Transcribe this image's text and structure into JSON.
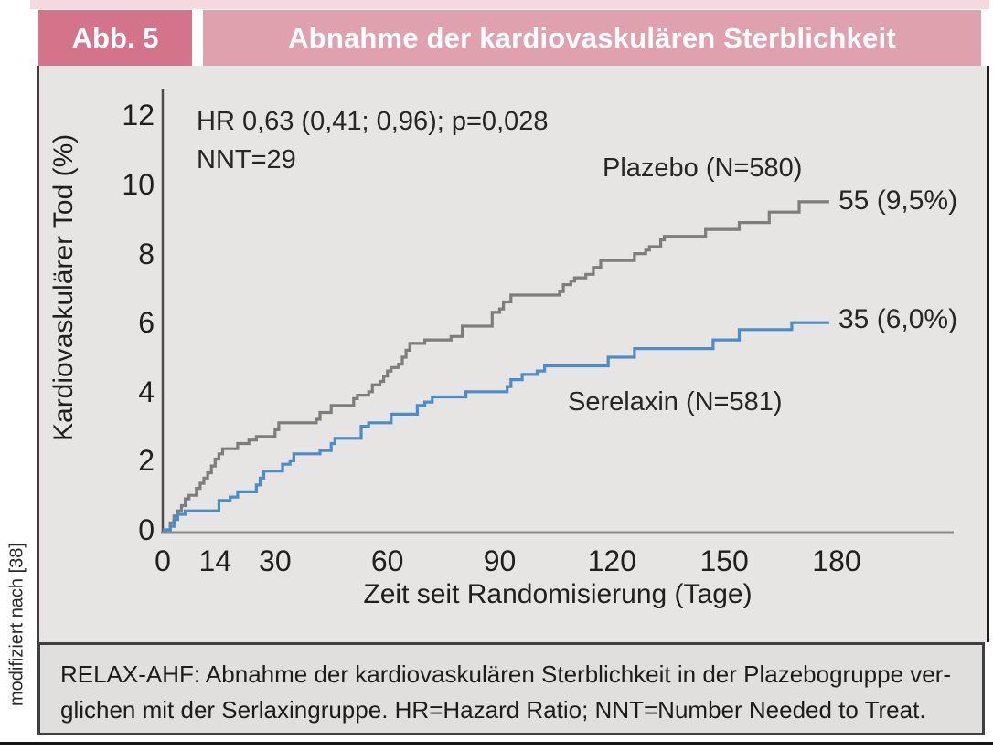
{
  "figure": {
    "label": "Abb. 5",
    "title": "Abnahme der kardiovaskulären Sterblichkeit",
    "side_note": "modifiziert nach [38]",
    "caption_line1": "RELAX-AHF: Abnahme der kardiovaskulären Sterblichkeit in der Plazebogruppe ver-",
    "caption_line2": "glichen mit der Serlaxingruppe. HR=Hazard Ratio; NNT=Number Needed to Treat."
  },
  "colors": {
    "header_label_bg": "#d3748b",
    "header_title_bg": "#dfa1ae",
    "top_strip": "#f4d9de",
    "chart_bg": "#e6e5e4",
    "footer_bg": "#e0dfde",
    "plazebo_line": "#7d7d7d",
    "serelaxin_line": "#4b8ec7"
  },
  "chart_data": {
    "type": "line",
    "subtype": "kaplan-meier-step",
    "title": "",
    "xlabel": "Zeit seit Randomisierung (Tage)",
    "ylabel": "Kardiovaskulärer Tod (%)",
    "xlim": [
      0,
      211
    ],
    "ylim": [
      0,
      13
    ],
    "x_ticks": [
      0,
      14,
      30,
      60,
      90,
      120,
      150,
      180
    ],
    "y_ticks": [
      0,
      2,
      4,
      6,
      8,
      10,
      12
    ],
    "grid": false,
    "legend_position": "inline-labels",
    "annotation": [
      "HR 0,63 (0,41; 0,96); p=0,028",
      "NNT=29"
    ],
    "series": [
      {
        "name": "Plazebo (N=580)",
        "end_label": "55 (9,5%)",
        "events": 55,
        "final_pct": 9.5,
        "color": "#7d7d7d",
        "points": [
          [
            0,
            0
          ],
          [
            2,
            0.2
          ],
          [
            3,
            0.4
          ],
          [
            4,
            0.55
          ],
          [
            5,
            0.7
          ],
          [
            6,
            0.9
          ],
          [
            7,
            1.0
          ],
          [
            9,
            1.2
          ],
          [
            10,
            1.35
          ],
          [
            11,
            1.5
          ],
          [
            12,
            1.65
          ],
          [
            13,
            1.85
          ],
          [
            14,
            2.05
          ],
          [
            15,
            2.2
          ],
          [
            16,
            2.35
          ],
          [
            20,
            2.5
          ],
          [
            23,
            2.6
          ],
          [
            25,
            2.7
          ],
          [
            30,
            2.9
          ],
          [
            31,
            3.1
          ],
          [
            41,
            3.2
          ],
          [
            42,
            3.4
          ],
          [
            45,
            3.6
          ],
          [
            51,
            3.8
          ],
          [
            52,
            3.9
          ],
          [
            55,
            4.0
          ],
          [
            56,
            4.2
          ],
          [
            58,
            4.3
          ],
          [
            59,
            4.45
          ],
          [
            60,
            4.6
          ],
          [
            61,
            4.7
          ],
          [
            63,
            4.8
          ],
          [
            64,
            5.0
          ],
          [
            65,
            5.2
          ],
          [
            66,
            5.4
          ],
          [
            70,
            5.5
          ],
          [
            77,
            5.6
          ],
          [
            80,
            5.9
          ],
          [
            88,
            6.3
          ],
          [
            90,
            6.4
          ],
          [
            91,
            6.6
          ],
          [
            93,
            6.8
          ],
          [
            106,
            6.9
          ],
          [
            107,
            7.1
          ],
          [
            109,
            7.2
          ],
          [
            110,
            7.3
          ],
          [
            113,
            7.4
          ],
          [
            115,
            7.6
          ],
          [
            117,
            7.8
          ],
          [
            126,
            8.0
          ],
          [
            129,
            8.1
          ],
          [
            130,
            8.2
          ],
          [
            133,
            8.4
          ],
          [
            134,
            8.5
          ],
          [
            145,
            8.7
          ],
          [
            154,
            8.9
          ],
          [
            162,
            9.2
          ],
          [
            170,
            9.5
          ],
          [
            178,
            9.5
          ]
        ]
      },
      {
        "name": "Serelaxin (N=581)",
        "end_label": "35 (6,0%)",
        "events": 35,
        "final_pct": 6.0,
        "color": "#4b8ec7",
        "points": [
          [
            0,
            0
          ],
          [
            2,
            0.1
          ],
          [
            3,
            0.3
          ],
          [
            4,
            0.45
          ],
          [
            6,
            0.55
          ],
          [
            15,
            0.85
          ],
          [
            18,
            0.95
          ],
          [
            20,
            1.1
          ],
          [
            25,
            1.3
          ],
          [
            26,
            1.5
          ],
          [
            27,
            1.7
          ],
          [
            32,
            1.9
          ],
          [
            34,
            2.0
          ],
          [
            35,
            2.2
          ],
          [
            42,
            2.3
          ],
          [
            45,
            2.5
          ],
          [
            46,
            2.65
          ],
          [
            53,
            3.0
          ],
          [
            55,
            3.1
          ],
          [
            61,
            3.35
          ],
          [
            68,
            3.6
          ],
          [
            70,
            3.7
          ],
          [
            72,
            3.85
          ],
          [
            81,
            4.0
          ],
          [
            92,
            4.15
          ],
          [
            93,
            4.35
          ],
          [
            96,
            4.5
          ],
          [
            100,
            4.6
          ],
          [
            102,
            4.75
          ],
          [
            119,
            5.0
          ],
          [
            126,
            5.25
          ],
          [
            147,
            5.5
          ],
          [
            154,
            5.8
          ],
          [
            168,
            6.0
          ],
          [
            178,
            6.0
          ]
        ]
      }
    ]
  }
}
